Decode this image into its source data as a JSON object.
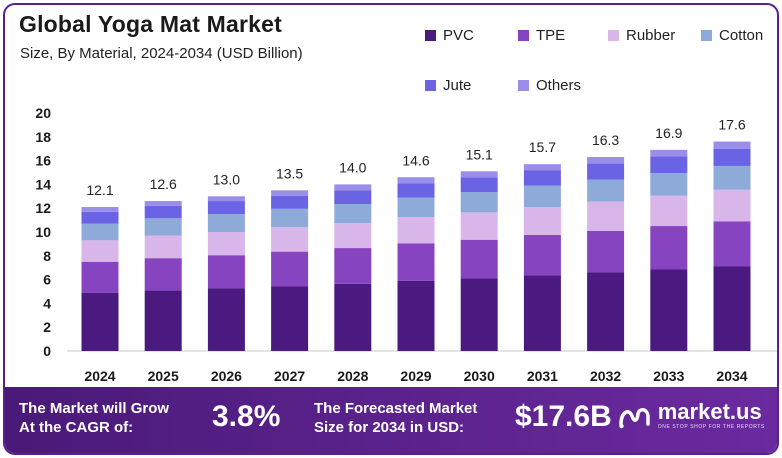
{
  "chart_data": {
    "type": "stacked-bar",
    "title": "Global Yoga Mat Market",
    "subtitle": "Size, By Material, 2024-2034 (USD Billion)",
    "categories": [
      "2024",
      "2025",
      "2026",
      "2027",
      "2028",
      "2029",
      "2030",
      "2031",
      "2032",
      "2033",
      "2034"
    ],
    "totals": [
      12.1,
      12.6,
      13.0,
      13.5,
      14.0,
      14.6,
      15.1,
      15.7,
      16.3,
      16.9,
      17.6
    ],
    "total_labels": [
      "12.1",
      "12.6",
      "13.0",
      "13.5",
      "14.0",
      "14.6",
      "15.1",
      "15.7",
      "16.3",
      "16.9",
      "17.6"
    ],
    "series": [
      {
        "name": "PVC",
        "color": "#4a1a80",
        "values": [
          4.9,
          5.1,
          5.25,
          5.45,
          5.65,
          5.9,
          6.1,
          6.35,
          6.6,
          6.85,
          7.1
        ]
      },
      {
        "name": "TPE",
        "color": "#8644c0",
        "values": [
          2.6,
          2.7,
          2.8,
          2.9,
          3.0,
          3.15,
          3.25,
          3.4,
          3.5,
          3.65,
          3.8
        ]
      },
      {
        "name": "Rubber",
        "color": "#d9b6ea",
        "values": [
          1.8,
          1.9,
          1.95,
          2.05,
          2.1,
          2.2,
          2.3,
          2.35,
          2.45,
          2.55,
          2.65
        ]
      },
      {
        "name": "Cotton",
        "color": "#8eaad8",
        "values": [
          1.4,
          1.45,
          1.5,
          1.55,
          1.6,
          1.65,
          1.7,
          1.8,
          1.85,
          1.9,
          2.0
        ]
      },
      {
        "name": "Jute",
        "color": "#6a63e4",
        "values": [
          1.0,
          1.05,
          1.1,
          1.1,
          1.15,
          1.2,
          1.25,
          1.3,
          1.35,
          1.4,
          1.45
        ]
      },
      {
        "name": "Others",
        "color": "#9a8ee8",
        "values": [
          0.4,
          0.4,
          0.4,
          0.45,
          0.5,
          0.5,
          0.5,
          0.5,
          0.55,
          0.55,
          0.6
        ]
      }
    ],
    "yticks": [
      0,
      2,
      4,
      6,
      8,
      10,
      12,
      14,
      16,
      18,
      20
    ],
    "ylim": [
      0,
      20
    ],
    "xlabel": "",
    "ylabel": "",
    "legend_position": "top-right"
  },
  "footer": {
    "cagr_label_line1": "The Market will Grow",
    "cagr_label_line2": "At the CAGR of:",
    "cagr_value": "3.8%",
    "forecast_label_line1": "The Forecasted Market",
    "forecast_label_line2": "Size for 2034 in USD:",
    "forecast_value": "$17.6B",
    "brand_name": "market.us",
    "brand_tagline": "ONE STOP SHOP FOR THE REPORTS"
  }
}
